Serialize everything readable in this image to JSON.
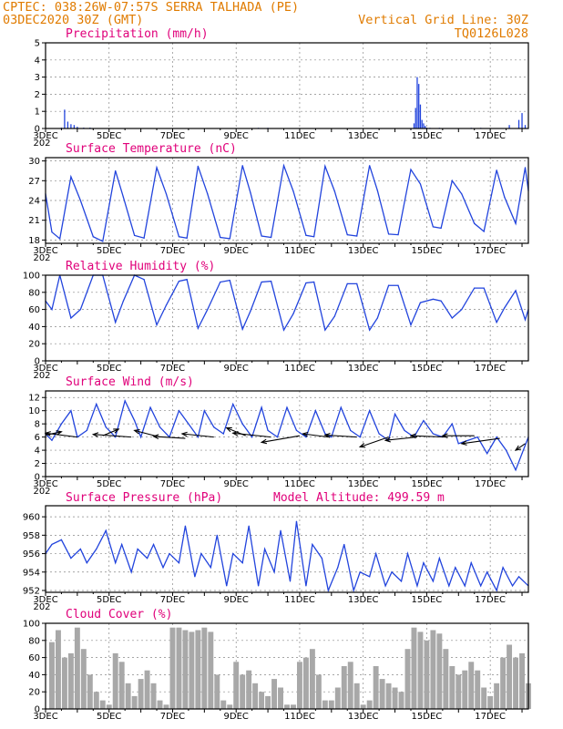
{
  "header": {
    "line1": "CPTEC:   038:26W-07:57S   SERRA TALHADA (PE)",
    "line2": "03DEC2020 30Z (GMT)",
    "grid_note": "Vertical Grid Line: 30Z",
    "code": "TQ0126L028"
  },
  "colors": {
    "header": "#e07b00",
    "panel_title": "#e0007a",
    "series": "#2244dd",
    "cloud": "#a8a8a8",
    "wind_arrow": "#000000"
  },
  "x_axis": {
    "start_day": 3,
    "end_day": 18.2,
    "tick_labels": [
      "3DEC",
      "5DEC",
      "7DEC",
      "9DEC",
      "11DEC",
      "13DEC",
      "15DEC",
      "17DEC"
    ],
    "tick_days": [
      3,
      5,
      7,
      9,
      11,
      13,
      15,
      17
    ],
    "year_fragment": "202"
  },
  "chart_data": [
    {
      "type": "bar",
      "title": "Precipitation (mm/h)",
      "ylim": [
        0,
        5
      ],
      "yticks": [
        0,
        1,
        2,
        3,
        4,
        5
      ],
      "x": [
        3.5,
        3.6,
        3.7,
        3.8,
        3.9,
        4.0,
        4.2,
        4.4,
        9.7,
        10.0,
        14.6,
        14.65,
        14.7,
        14.75,
        14.8,
        14.85,
        14.9,
        14.95,
        15.0,
        15.1,
        15.4,
        16.4,
        16.7,
        17.6,
        17.9,
        18.0,
        18.1
      ],
      "values": [
        0.05,
        1.1,
        0.4,
        0.25,
        0.2,
        0.1,
        0.05,
        0.05,
        0.04,
        0.04,
        0.3,
        1.2,
        3.0,
        2.6,
        1.4,
        0.5,
        0.3,
        0.15,
        0.05,
        0.04,
        0.04,
        0.04,
        0.04,
        0.2,
        0.5,
        0.9,
        0.2
      ]
    },
    {
      "type": "line",
      "title": "Surface Temperature (nC)",
      "ylim": [
        17.5,
        30.5
      ],
      "yticks": [
        18,
        21,
        24,
        27,
        30
      ],
      "x": [
        3.0,
        3.2,
        3.45,
        3.8,
        4.1,
        4.5,
        4.8,
        5.2,
        5.45,
        5.8,
        6.1,
        6.5,
        6.8,
        7.2,
        7.45,
        7.8,
        8.1,
        8.5,
        8.8,
        9.2,
        9.45,
        9.8,
        10.1,
        10.5,
        10.8,
        11.2,
        11.45,
        11.8,
        12.1,
        12.5,
        12.8,
        13.2,
        13.45,
        13.8,
        14.1,
        14.5,
        14.8,
        15.2,
        15.45,
        15.8,
        16.1,
        16.5,
        16.8,
        17.2,
        17.45,
        17.8,
        18.1,
        18.2
      ],
      "values": [
        25.0,
        19.2,
        18.2,
        27.6,
        24.0,
        18.5,
        17.8,
        28.5,
        24.5,
        18.7,
        18.3,
        29.0,
        25.0,
        18.5,
        18.3,
        29.2,
        25.0,
        18.4,
        18.2,
        29.3,
        25.2,
        18.6,
        18.4,
        29.3,
        25.4,
        18.7,
        18.5,
        29.2,
        25.4,
        18.8,
        18.6,
        29.3,
        25.5,
        18.9,
        18.8,
        28.7,
        26.5,
        20.0,
        19.8,
        27.0,
        25.0,
        20.5,
        19.3,
        28.6,
        24.5,
        20.5,
        29.0,
        25.5
      ]
    },
    {
      "type": "line",
      "title": "Relative Humidity (%)",
      "ylim": [
        0,
        100
      ],
      "yticks": [
        0,
        20,
        40,
        60,
        80,
        100
      ],
      "x": [
        3.0,
        3.2,
        3.45,
        3.8,
        4.1,
        4.5,
        4.8,
        5.2,
        5.45,
        5.8,
        6.1,
        6.5,
        6.8,
        7.2,
        7.45,
        7.8,
        8.1,
        8.5,
        8.8,
        9.2,
        9.45,
        9.8,
        10.1,
        10.5,
        10.8,
        11.2,
        11.45,
        11.8,
        12.1,
        12.5,
        12.8,
        13.2,
        13.45,
        13.8,
        14.1,
        14.5,
        14.8,
        15.2,
        15.45,
        15.8,
        16.1,
        16.5,
        16.8,
        17.2,
        17.45,
        17.8,
        18.1,
        18.2
      ],
      "values": [
        70,
        60,
        100,
        50,
        60,
        100,
        100,
        45,
        70,
        100,
        95,
        42,
        65,
        93,
        95,
        38,
        60,
        92,
        94,
        37,
        58,
        92,
        93,
        36,
        55,
        91,
        92,
        36,
        52,
        90,
        90,
        36,
        50,
        88,
        88,
        42,
        68,
        72,
        70,
        50,
        60,
        85,
        85,
        45,
        62,
        82,
        48,
        60
      ]
    },
    {
      "type": "line",
      "title": "Surface Wind (m/s)",
      "ylim": [
        0,
        13
      ],
      "yticks": [
        0,
        2,
        4,
        6,
        8,
        10,
        12
      ],
      "x": [
        3.0,
        3.2,
        3.5,
        3.8,
        4.0,
        4.3,
        4.6,
        4.9,
        5.2,
        5.5,
        5.8,
        6.0,
        6.3,
        6.6,
        6.9,
        7.2,
        7.5,
        7.8,
        8.0,
        8.3,
        8.6,
        8.9,
        9.2,
        9.5,
        9.8,
        10.0,
        10.3,
        10.6,
        10.9,
        11.2,
        11.5,
        11.8,
        12.0,
        12.3,
        12.6,
        12.9,
        13.2,
        13.5,
        13.8,
        14.0,
        14.3,
        14.6,
        14.9,
        15.2,
        15.5,
        15.8,
        16.0,
        16.3,
        16.6,
        16.9,
        17.2,
        17.5,
        17.8,
        18.0,
        18.2
      ],
      "values": [
        6.5,
        5.5,
        8.0,
        10.0,
        6.0,
        7.0,
        11.0,
        7.5,
        6.0,
        11.5,
        8.5,
        6.0,
        10.5,
        7.5,
        6.0,
        10.0,
        8.0,
        6.0,
        10.0,
        7.5,
        6.5,
        11.0,
        8.0,
        6.0,
        10.5,
        7.0,
        6.0,
        10.5,
        7.0,
        6.0,
        10.0,
        6.5,
        6.0,
        10.5,
        7.0,
        6.0,
        10.0,
        6.5,
        5.5,
        9.5,
        7.0,
        6.0,
        8.5,
        6.5,
        6.0,
        8.0,
        5.0,
        5.5,
        6.0,
        3.5,
        6.0,
        4.0,
        1.0,
        3.5,
        6.0
      ],
      "wind_vectors": [
        {
          "x": 3.0,
          "y": 6.3,
          "dx": 0.5,
          "dy": 0.5
        },
        {
          "x": 4.0,
          "y": 6.0,
          "dx": -1.0,
          "dy": 0.6
        },
        {
          "x": 4.8,
          "y": 6.2,
          "dx": 0.5,
          "dy": 1.0
        },
        {
          "x": 5.7,
          "y": 6.0,
          "dx": -1.2,
          "dy": 0.4
        },
        {
          "x": 6.6,
          "y": 6.0,
          "dx": -0.8,
          "dy": 1.0
        },
        {
          "x": 7.4,
          "y": 5.8,
          "dx": -1.0,
          "dy": 0.3
        },
        {
          "x": 8.3,
          "y": 6.0,
          "dx": -1.0,
          "dy": 0.5
        },
        {
          "x": 9.3,
          "y": 6.2,
          "dx": -0.6,
          "dy": 1.2
        },
        {
          "x": 10.1,
          "y": 6.0,
          "dx": -1.2,
          "dy": 0.6
        },
        {
          "x": 11.0,
          "y": 6.2,
          "dx": -1.2,
          "dy": -1.0
        },
        {
          "x": 11.9,
          "y": 6.0,
          "dx": -0.8,
          "dy": 0.5
        },
        {
          "x": 12.8,
          "y": 6.0,
          "dx": -1.0,
          "dy": 0.3
        },
        {
          "x": 13.8,
          "y": 6.0,
          "dx": -0.9,
          "dy": -1.5
        },
        {
          "x": 14.7,
          "y": 6.0,
          "dx": -1.0,
          "dy": -0.5
        },
        {
          "x": 15.6,
          "y": 6.0,
          "dx": -1.1,
          "dy": 0.2
        },
        {
          "x": 16.5,
          "y": 6.2,
          "dx": -1.0,
          "dy": 0.0
        },
        {
          "x": 17.3,
          "y": 5.8,
          "dx": -1.2,
          "dy": -0.8
        },
        {
          "x": 18.1,
          "y": 5.0,
          "dx": -0.3,
          "dy": -1.0
        }
      ]
    },
    {
      "type": "line",
      "title": "Surface Pressure (hPa)",
      "annotation": "Model Altitude: 499.59 m",
      "ylim": [
        951.8,
        961.2
      ],
      "yticks": [
        952,
        954,
        956,
        958,
        960
      ],
      "x": [
        3.0,
        3.2,
        3.5,
        3.8,
        4.1,
        4.3,
        4.6,
        4.9,
        5.2,
        5.4,
        5.7,
        5.9,
        6.2,
        6.4,
        6.7,
        6.9,
        7.2,
        7.4,
        7.7,
        7.9,
        8.2,
        8.4,
        8.7,
        8.9,
        9.2,
        9.4,
        9.7,
        9.9,
        10.2,
        10.4,
        10.7,
        10.9,
        11.2,
        11.4,
        11.7,
        11.9,
        12.2,
        12.4,
        12.7,
        12.9,
        13.2,
        13.4,
        13.7,
        13.9,
        14.2,
        14.4,
        14.7,
        14.9,
        15.2,
        15.4,
        15.7,
        15.9,
        16.2,
        16.4,
        16.7,
        16.9,
        17.2,
        17.4,
        17.7,
        17.9,
        18.2
      ],
      "values": [
        956.0,
        957.0,
        957.5,
        955.5,
        956.5,
        955.0,
        956.5,
        958.5,
        955.0,
        957.0,
        954.0,
        956.5,
        955.5,
        957.0,
        954.5,
        956.0,
        955.0,
        959.0,
        953.5,
        956.0,
        954.5,
        958.0,
        952.5,
        956.0,
        955.0,
        959.0,
        952.5,
        956.5,
        954.0,
        958.5,
        953.0,
        959.5,
        952.5,
        957.0,
        955.5,
        952.0,
        954.5,
        957.0,
        952.0,
        954.0,
        953.5,
        956.0,
        952.5,
        954.0,
        953.0,
        956.0,
        952.5,
        955.0,
        953.0,
        955.5,
        952.5,
        954.5,
        952.5,
        955.0,
        952.5,
        954.0,
        952.0,
        954.5,
        952.5,
        953.5,
        952.5
      ]
    },
    {
      "type": "bar",
      "title": "Cloud Cover (%)",
      "ylim": [
        0,
        100
      ],
      "yticks": [
        0,
        20,
        40,
        60,
        80,
        100
      ],
      "x": [
        3.2,
        3.4,
        3.6,
        3.8,
        4.0,
        4.2,
        4.4,
        4.6,
        4.8,
        5.0,
        5.2,
        5.4,
        5.6,
        5.8,
        6.0,
        6.2,
        6.4,
        6.6,
        6.8,
        7.0,
        7.2,
        7.4,
        7.6,
        7.8,
        8.0,
        8.2,
        8.4,
        8.6,
        8.8,
        9.0,
        9.2,
        9.4,
        9.6,
        9.8,
        10.0,
        10.2,
        10.4,
        10.6,
        10.8,
        11.0,
        11.2,
        11.4,
        11.6,
        11.8,
        12.0,
        12.2,
        12.4,
        12.6,
        12.8,
        13.0,
        13.2,
        13.4,
        13.6,
        13.8,
        14.0,
        14.2,
        14.4,
        14.6,
        14.8,
        15.0,
        15.2,
        15.4,
        15.6,
        15.8,
        16.0,
        16.2,
        16.4,
        16.6,
        16.8,
        17.0,
        17.2,
        17.4,
        17.6,
        17.8,
        18.0,
        18.2
      ],
      "values": [
        78,
        92,
        60,
        65,
        95,
        70,
        40,
        20,
        10,
        5,
        65,
        55,
        30,
        15,
        35,
        45,
        30,
        10,
        5,
        95,
        95,
        92,
        90,
        92,
        95,
        90,
        40,
        10,
        5,
        55,
        40,
        45,
        30,
        20,
        15,
        35,
        25,
        5,
        5,
        55,
        60,
        70,
        40,
        10,
        10,
        25,
        50,
        55,
        30,
        5,
        10,
        50,
        35,
        30,
        25,
        20,
        70,
        95,
        90,
        80,
        92,
        88,
        70,
        50,
        40,
        45,
        55,
        45,
        25,
        15,
        30,
        60,
        75,
        60,
        65,
        30
      ]
    }
  ]
}
